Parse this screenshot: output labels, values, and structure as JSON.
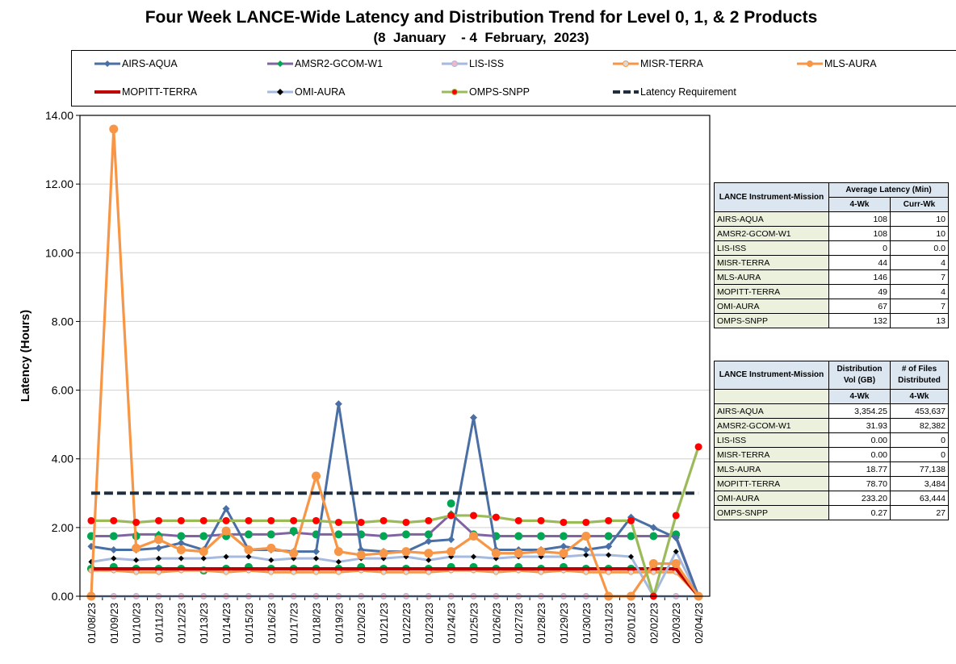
{
  "chart_data": {
    "type": "line",
    "title": "Four Week LANCE-Wide Latency and Distribution Trend for Level 0, 1, & 2 Products",
    "subtitle": "(8  January    - 4  February,  2023)",
    "xlabel": "",
    "ylabel": "Latency (Hours)",
    "ylim": [
      0,
      14
    ],
    "yticks": [
      "0.00",
      "2.00",
      "4.00",
      "6.00",
      "8.00",
      "10.00",
      "12.00",
      "14.00"
    ],
    "grid": true,
    "legend_position": "top",
    "x": [
      "01/08/23",
      "01/09/23",
      "01/10/23",
      "01/11/23",
      "01/12/23",
      "01/13/23",
      "01/14/23",
      "01/15/23",
      "01/16/23",
      "01/17/23",
      "01/18/23",
      "01/19/23",
      "01/20/23",
      "01/21/23",
      "01/22/23",
      "01/23/23",
      "01/24/23",
      "01/25/23",
      "01/26/23",
      "01/27/23",
      "01/28/23",
      "01/29/23",
      "01/30/23",
      "01/31/23",
      "02/01/23",
      "02/02/23",
      "02/03/23",
      "02/04/23"
    ],
    "series": [
      {
        "name": "AIRS-AQUA",
        "color": "#4a6fa5",
        "marker": "diamond",
        "values": [
          1.45,
          1.35,
          1.35,
          1.4,
          1.55,
          1.35,
          2.55,
          1.35,
          1.35,
          1.3,
          1.3,
          5.6,
          1.35,
          1.3,
          1.3,
          1.6,
          1.65,
          5.2,
          1.35,
          1.35,
          1.35,
          1.45,
          1.35,
          1.45,
          2.3,
          2.0,
          1.7,
          0.0
        ]
      },
      {
        "name": "AMSR2-GCOM-W1",
        "color": "#8064a2",
        "marker": "diamond",
        "values": [
          1.75,
          1.75,
          1.8,
          1.8,
          1.75,
          1.75,
          1.8,
          1.8,
          1.8,
          1.85,
          1.8,
          1.8,
          1.8,
          1.75,
          1.8,
          1.8,
          2.4,
          1.8,
          1.75,
          1.75,
          1.75,
          1.75,
          1.75,
          1.75,
          1.75,
          1.75,
          1.75,
          0.0
        ]
      },
      {
        "name": "LIS-ISS",
        "color": "#a6b9df",
        "marker": "circle",
        "values": [
          0,
          0,
          0,
          0,
          0,
          0,
          0,
          0,
          0,
          0,
          0,
          0,
          0,
          0,
          0,
          0,
          0,
          0,
          0,
          0,
          0,
          0,
          0,
          0,
          0,
          0,
          0,
          0
        ]
      },
      {
        "name": "MISR-TERRA",
        "color": "#f79646",
        "marker": "circle",
        "values": [
          0.75,
          0.75,
          0.7,
          0.7,
          0.75,
          0.75,
          0.7,
          0.75,
          0.7,
          0.7,
          0.7,
          0.7,
          0.75,
          0.7,
          0.7,
          0.7,
          0.75,
          0.75,
          0.7,
          0.75,
          0.7,
          0.75,
          0.7,
          0.7,
          0.7,
          0.7,
          0.7,
          0.0
        ]
      },
      {
        "name": "MLS-AURA",
        "color": "#f79646",
        "marker": "circle",
        "values": [
          0.0,
          13.6,
          1.4,
          1.65,
          1.35,
          1.3,
          1.9,
          1.35,
          1.4,
          1.25,
          3.5,
          1.3,
          1.2,
          1.25,
          1.3,
          1.25,
          1.3,
          1.75,
          1.25,
          1.25,
          1.3,
          1.25,
          1.75,
          0.0,
          0.0,
          0.95,
          0.95,
          0.0
        ]
      },
      {
        "name": "MOPITT-TERRA",
        "color": "#c00000",
        "marker": "none",
        "values": [
          0.8,
          0.8,
          0.8,
          0.8,
          0.8,
          0.8,
          0.8,
          0.8,
          0.8,
          0.8,
          0.8,
          0.8,
          0.8,
          0.8,
          0.8,
          0.8,
          0.8,
          0.8,
          0.8,
          0.8,
          0.8,
          0.8,
          0.8,
          0.8,
          0.8,
          0.8,
          0.8,
          0.0
        ]
      },
      {
        "name": "OMI-AURA",
        "color": "#a6b9df",
        "marker": "diamond-black",
        "values": [
          1.0,
          1.1,
          1.05,
          1.1,
          1.1,
          1.1,
          1.15,
          1.15,
          1.05,
          1.1,
          1.1,
          1.0,
          1.1,
          1.1,
          1.15,
          1.05,
          1.15,
          1.15,
          1.1,
          1.15,
          1.15,
          1.15,
          1.2,
          1.2,
          1.15,
          0.0,
          1.3,
          0.0
        ]
      },
      {
        "name": "OMPS-SNPP",
        "color": "#9bbb59",
        "marker": "circle-red",
        "values": [
          2.2,
          2.2,
          2.15,
          2.2,
          2.2,
          2.2,
          2.2,
          2.2,
          2.2,
          2.2,
          2.2,
          2.15,
          2.15,
          2.2,
          2.15,
          2.2,
          2.35,
          2.35,
          2.3,
          2.2,
          2.2,
          2.15,
          2.15,
          2.2,
          2.2,
          0.0,
          2.35,
          4.35
        ]
      },
      {
        "name": "Latency Requirement",
        "color": "#1f2d3d",
        "marker": "none",
        "dashed": true,
        "values": [
          3,
          3,
          3,
          3,
          3,
          3,
          3,
          3,
          3,
          3,
          3,
          3,
          3,
          3,
          3,
          3,
          3,
          3,
          3,
          3,
          3,
          3,
          3,
          3,
          3,
          3,
          3,
          3
        ]
      },
      {
        "name": "green markers (MOPITT)",
        "legend": false,
        "color": "#00a651",
        "marker": "circle-green",
        "values": [
          0.8,
          0.85,
          0.8,
          0.8,
          0.8,
          0.75,
          0.8,
          0.85,
          0.8,
          0.8,
          0.8,
          0.8,
          0.85,
          0.8,
          0.8,
          0.8,
          0.85,
          0.85,
          0.8,
          0.85,
          0.8,
          0.85,
          0.8,
          0.8,
          0.8,
          0.8,
          0.8,
          0.0
        ]
      },
      {
        "name": "green markers (AMSR2)",
        "legend": false,
        "color": "#00a651",
        "marker": "circle-green",
        "values": [
          1.75,
          1.75,
          1.75,
          1.75,
          1.75,
          1.75,
          1.75,
          1.8,
          1.8,
          1.9,
          1.8,
          1.8,
          1.8,
          1.75,
          1.8,
          1.8,
          2.7,
          1.8,
          1.75,
          1.75,
          1.75,
          1.75,
          1.75,
          1.75,
          1.75,
          1.75,
          1.8,
          0.0
        ]
      }
    ]
  },
  "legend": {
    "items": [
      {
        "label": "AIRS-AQUA",
        "color": "#4a6fa5",
        "marker": "diamond",
        "mcolor": "#4a6fa5"
      },
      {
        "label": "AMSR2-GCOM-W1",
        "color": "#8064a2",
        "marker": "diamond",
        "mcolor": "#00a651"
      },
      {
        "label": "LIS-ISS",
        "color": "#a6b9df",
        "marker": "circle",
        "mcolor": "#f4b6c2"
      },
      {
        "label": "MISR-TERRA",
        "color": "#f79646",
        "marker": "circle",
        "mcolor": "#d9d9d9"
      },
      {
        "label": "MLS-AURA",
        "color": "#f79646",
        "marker": "circle",
        "mcolor": "#f79646"
      },
      {
        "label": "MOPITT-TERRA",
        "color": "#c00000",
        "marker": "none",
        "mcolor": "#c00000"
      },
      {
        "label": "OMI-AURA",
        "color": "#a6b9df",
        "marker": "diamond",
        "mcolor": "#000000"
      },
      {
        "label": "OMPS-SNPP",
        "color": "#9bbb59",
        "marker": "circle",
        "mcolor": "#ff0000"
      },
      {
        "label": "Latency Requirement",
        "color": "#1f2d3d",
        "marker": "dash",
        "mcolor": "#1f2d3d"
      }
    ]
  },
  "latency_table": {
    "h_instrument": "LANCE Instrument-Mission",
    "h_avg": "Average Latency (Min)",
    "h_4wk": "4-Wk",
    "h_curr": "Curr-Wk",
    "rows": [
      {
        "name": "AIRS-AQUA",
        "wk4": "108",
        "curr": "10"
      },
      {
        "name": "AMSR2-GCOM-W1",
        "wk4": "108",
        "curr": "10"
      },
      {
        "name": "LIS-ISS",
        "wk4": "0",
        "curr": "0.0"
      },
      {
        "name": "MISR-TERRA",
        "wk4": "44",
        "curr": "4"
      },
      {
        "name": "MLS-AURA",
        "wk4": "146",
        "curr": "7"
      },
      {
        "name": "MOPITT-TERRA",
        "wk4": "49",
        "curr": "4"
      },
      {
        "name": "OMI-AURA",
        "wk4": "67",
        "curr": "7"
      },
      {
        "name": "OMPS-SNPP",
        "wk4": "132",
        "curr": "13"
      }
    ]
  },
  "distribution_table": {
    "h_instrument": "LANCE Instrument-Mission",
    "h_vol": "Distribution Vol (GB)",
    "h_files": "# of Files Distributed",
    "h_4wk_a": "4-Wk",
    "h_4wk_b": "4-Wk",
    "rows": [
      {
        "name": "AIRS-AQUA",
        "vol": "3,354.25",
        "files": "453,637"
      },
      {
        "name": "AMSR2-GCOM-W1",
        "vol": "31.93",
        "files": "82,382"
      },
      {
        "name": "LIS-ISS",
        "vol": "0.00",
        "files": "0"
      },
      {
        "name": "MISR-TERRA",
        "vol": "0.00",
        "files": "0"
      },
      {
        "name": "MLS-AURA",
        "vol": "18.77",
        "files": "77,138"
      },
      {
        "name": "MOPITT-TERRA",
        "vol": "78.70",
        "files": "3,484"
      },
      {
        "name": "OMI-AURA",
        "vol": "233.20",
        "files": "63,444"
      },
      {
        "name": "OMPS-SNPP",
        "vol": "0.27",
        "files": "27"
      }
    ]
  }
}
